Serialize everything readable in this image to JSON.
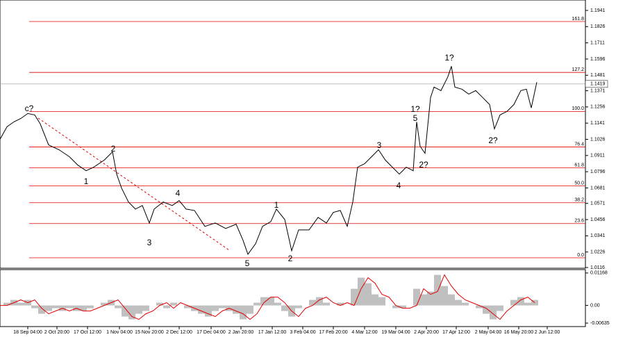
{
  "chart_data": [
    {
      "type": "line",
      "color": "#000000",
      "x": [
        0,
        10,
        20,
        30,
        40,
        50,
        58,
        70,
        85,
        100,
        112,
        124,
        135,
        150,
        162,
        168,
        175,
        185,
        195,
        205,
        215,
        222,
        235,
        248,
        258,
        268,
        280,
        295,
        310,
        325,
        340,
        350,
        357,
        368,
        378,
        390,
        398,
        410,
        420,
        430,
        445,
        458,
        470,
        480,
        490,
        500,
        508,
        515,
        525,
        535,
        545,
        555,
        565,
        575,
        585,
        595,
        600,
        605,
        612,
        620,
        625,
        635,
        645,
        650,
        655,
        665,
        675,
        685,
        695,
        705,
        712,
        720,
        730,
        740,
        750,
        758,
        765,
        773
      ],
      "values": [
        1.1026,
        1.1115,
        1.115,
        1.1174,
        1.1209,
        1.1199,
        1.1135,
        1.0986,
        1.0952,
        1.0902,
        1.0843,
        1.0803,
        1.0828,
        1.0878,
        1.0937,
        1.0779,
        1.068,
        1.0581,
        1.0531,
        1.0556,
        1.0432,
        1.0531,
        1.0581,
        1.0556,
        1.0591,
        1.0531,
        1.0521,
        1.0408,
        1.0432,
        1.0393,
        1.0423,
        1.0309,
        1.021,
        1.0284,
        1.0408,
        1.0442,
        1.0531,
        1.0457,
        1.0235,
        1.0383,
        1.0383,
        1.0472,
        1.0432,
        1.0507,
        1.0521,
        1.0408,
        1.0581,
        1.0828,
        1.0853,
        1.0902,
        1.0952,
        1.0878,
        1.0828,
        1.0779,
        1.0828,
        1.0803,
        1.115,
        1.0976,
        1.0927,
        1.1323,
        1.1397,
        1.1372,
        1.1471,
        1.1545,
        1.1397,
        1.1382,
        1.1347,
        1.1372,
        1.1323,
        1.1273,
        1.11,
        1.1199,
        1.1224,
        1.1273,
        1.1372,
        1.1382,
        1.1249,
        1.1432
      ],
      "xlim": [
        0,
        843
      ],
      "ylim": [
        1.0111,
        1.2015
      ],
      "yticks": [
        1.1941,
        1.1826,
        1.1711,
        1.1596,
        1.1481,
        1.1371,
        1.1256,
        1.1141,
        1.1026,
        1.0911,
        1.0796,
        1.0681,
        1.0571,
        1.0456,
        1.0341,
        1.0226,
        1.0116
      ],
      "xticks": [
        {
          "value": 40,
          "label": "18 Sep 04:00"
        },
        {
          "value": 82,
          "label": "2 Oct 20:00"
        },
        {
          "value": 126,
          "label": "17 Oct 12:00"
        },
        {
          "value": 172,
          "label": "1 Nov 04:00"
        },
        {
          "value": 215,
          "label": "15 Nov 20:00"
        },
        {
          "value": 258,
          "label": "2 Dec 12:00"
        },
        {
          "value": 304,
          "label": "17 Dec 04:00"
        },
        {
          "value": 347,
          "label": "2 Jan 20:00"
        },
        {
          "value": 392,
          "label": "17 Jan 12:00"
        },
        {
          "value": 436,
          "label": "3 Feb 04:00"
        },
        {
          "value": 480,
          "label": "17 Feb 20:00"
        },
        {
          "value": 525,
          "label": "4 Mar 12:00"
        },
        {
          "value": 570,
          "label": "19 Mar 04:00"
        },
        {
          "value": 614,
          "label": "2 Apr 20:00"
        },
        {
          "value": 657,
          "label": "17 Apr 12:00"
        },
        {
          "value": 703,
          "label": "2 May 04:00"
        },
        {
          "value": 747,
          "label": "16 May 20:00"
        },
        {
          "value": 788,
          "label": "2 Jun 12:00"
        }
      ],
      "levels": [
        {
          "label": "161.8",
          "value": 1.1862
        },
        {
          "label": "127.2",
          "value": 1.1501
        },
        {
          "label": "100.0",
          "value": 1.1224
        },
        {
          "label": "76.4",
          "value": 1.0972
        },
        {
          "label": "61.8",
          "value": 1.0823
        },
        {
          "label": "50.0",
          "value": 1.0695
        },
        {
          "label": "38.2",
          "value": 1.0576
        },
        {
          "label": "23.6",
          "value": 1.0428
        },
        {
          "label": "0.0",
          "value": 1.0185
        }
      ],
      "level_color": "#e00000",
      "current_price": 1.1419,
      "annotations": [
        {
          "text": "c?",
          "color": "#e00000"
        },
        {
          "text": "2",
          "color": "#2020c0"
        },
        {
          "text": "1",
          "color": "#2020c0"
        },
        {
          "text": "3",
          "color": "#2020c0"
        },
        {
          "text": "4",
          "color": "#2020c0"
        },
        {
          "text": "5",
          "color": "#2020c0"
        },
        {
          "text": "1",
          "color": "#2020c0"
        },
        {
          "text": "2",
          "color": "#2020c0"
        },
        {
          "text": "3",
          "color": "#2020c0"
        },
        {
          "text": "4",
          "color": "#2020c0"
        },
        {
          "text": "5",
          "color": "#2020c0"
        },
        {
          "text": "1?",
          "color": "#e00000"
        },
        {
          "text": "2?",
          "color": "#e00000"
        },
        {
          "text": "1?",
          "color": "#2020c0"
        },
        {
          "text": "2?",
          "color": "#2020c0"
        }
      ]
    },
    {
      "type": "bar",
      "color": "#c0c0c0",
      "x": [
        0,
        10,
        20,
        30,
        40,
        50,
        60,
        70,
        80,
        90,
        100,
        110,
        120,
        130,
        140,
        150,
        160,
        170,
        180,
        190,
        200,
        210,
        220,
        230,
        240,
        250,
        260,
        270,
        280,
        290,
        300,
        310,
        320,
        330,
        340,
        350,
        360,
        370,
        380,
        390,
        400,
        410,
        420,
        430,
        440,
        450,
        460,
        470,
        480,
        490,
        500,
        510,
        520,
        530,
        540,
        550,
        560,
        570,
        580,
        590,
        600,
        610,
        620,
        630,
        640,
        650,
        660,
        670,
        680,
        690,
        700,
        710,
        720,
        730,
        740,
        750,
        760,
        770
      ],
      "values": [
        0.0,
        0.001,
        0.002,
        0.001,
        0.002,
        -0.001,
        -0.003,
        -0.002,
        -0.001,
        -0.002,
        -0.001,
        -0.002,
        -0.002,
        -0.001,
        0.0,
        0.001,
        0.002,
        -0.001,
        -0.004,
        -0.005,
        -0.003,
        -0.002,
        0.0,
        0.001,
        -0.001,
        0.001,
        0.0,
        -0.001,
        -0.002,
        -0.003,
        -0.004,
        -0.002,
        -0.001,
        -0.002,
        -0.003,
        -0.005,
        -0.003,
        0.001,
        0.003,
        0.003,
        0.001,
        -0.002,
        -0.004,
        -0.001,
        0.0,
        0.002,
        0.003,
        0.001,
        0.0,
        0.001,
        0.0,
        0.006,
        0.01,
        0.008,
        0.004,
        0.003,
        0.0,
        -0.001,
        -0.001,
        0.0,
        0.006,
        0.004,
        0.005,
        0.011,
        0.007,
        0.004,
        0.002,
        0.001,
        0.0,
        -0.001,
        -0.003,
        -0.005,
        -0.002,
        0.0,
        0.002,
        0.003,
        0.001,
        0.002
      ],
      "signal": {
        "color": "#e00000",
        "values": [
          0.0,
          0.0,
          0.001,
          0.002,
          0.001,
          0.002,
          -0.001,
          -0.003,
          -0.002,
          -0.001,
          -0.002,
          -0.001,
          -0.002,
          -0.002,
          -0.001,
          0.0,
          0.001,
          0.002,
          -0.001,
          -0.004,
          -0.005,
          -0.003,
          -0.002,
          0.0,
          0.001,
          -0.001,
          0.001,
          0.0,
          -0.001,
          -0.002,
          -0.003,
          -0.004,
          -0.002,
          -0.001,
          -0.002,
          -0.003,
          -0.005,
          -0.003,
          0.001,
          0.003,
          0.003,
          0.001,
          -0.002,
          -0.004,
          -0.001,
          0.0,
          0.002,
          0.003,
          0.001,
          0.0,
          0.001,
          0.0,
          0.006,
          0.01,
          0.008,
          0.004,
          0.003,
          0.0,
          -0.001,
          -0.001,
          0.0,
          0.006,
          0.004,
          0.005,
          0.011,
          0.007,
          0.004,
          0.002,
          0.001,
          0.0,
          -0.001,
          -0.003,
          -0.005,
          -0.002,
          0.0,
          0.002,
          0.003,
          0.001
        ]
      },
      "xlim": [
        0,
        843
      ],
      "ylim": [
        -0.0076,
        0.0129
      ],
      "yticks": [
        0.01168,
        {
          "value": 0,
          "label": "0.00"
        },
        -0.00635
      ]
    }
  ]
}
